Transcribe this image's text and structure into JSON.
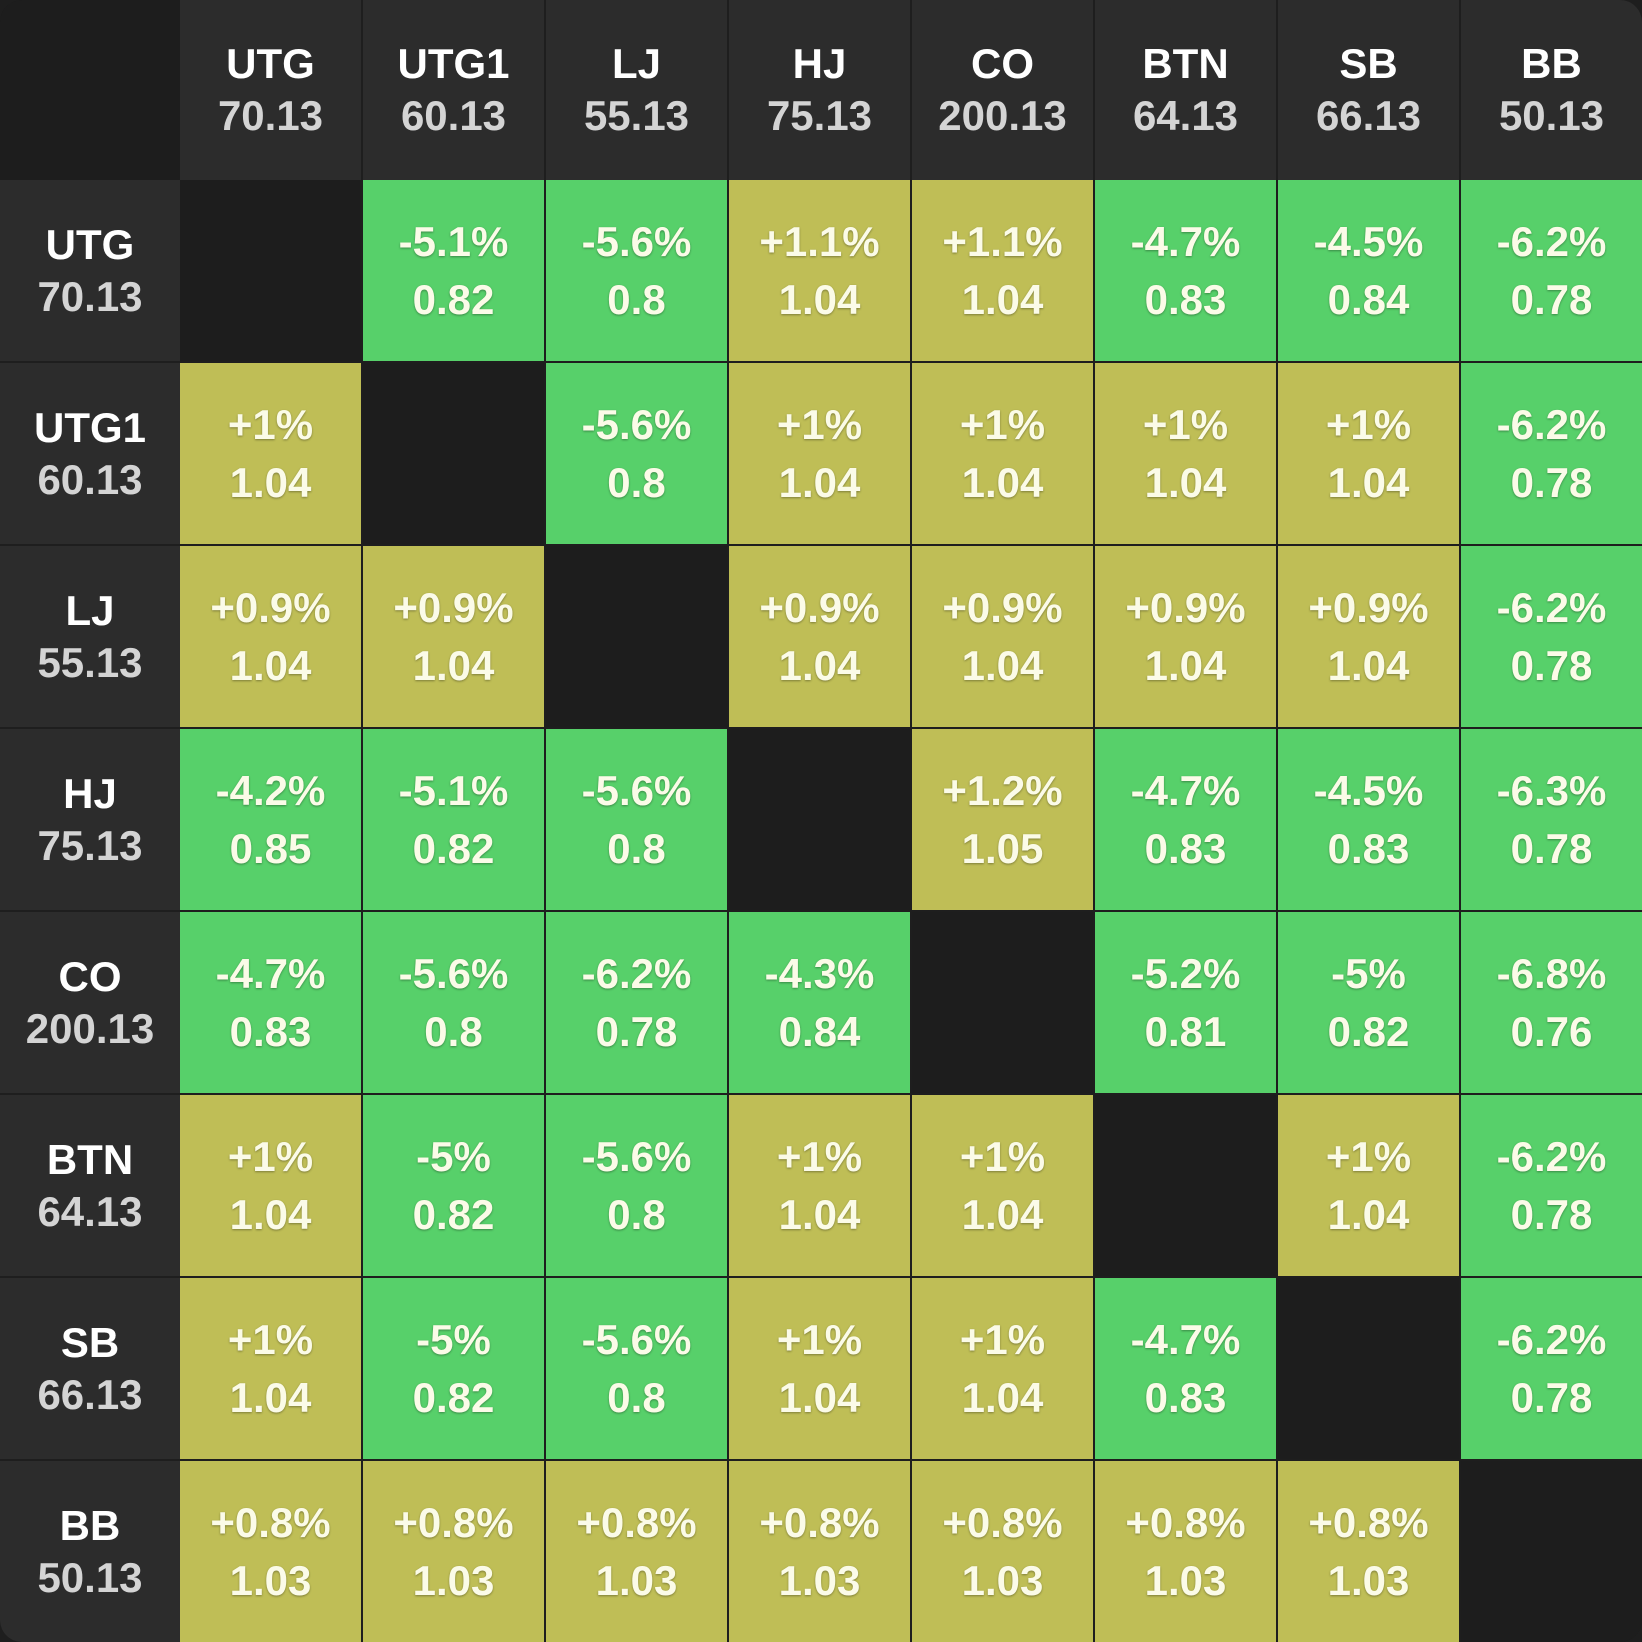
{
  "colors": {
    "green": "#57d06a",
    "olive": "#bfbe56",
    "empty": "#1d1d1d",
    "header": "#2c2c2c"
  },
  "columns": [
    {
      "pos": "UTG",
      "stack": "70.13"
    },
    {
      "pos": "UTG1",
      "stack": "60.13"
    },
    {
      "pos": "LJ",
      "stack": "55.13"
    },
    {
      "pos": "HJ",
      "stack": "75.13"
    },
    {
      "pos": "CO",
      "stack": "200.13"
    },
    {
      "pos": "BTN",
      "stack": "64.13"
    },
    {
      "pos": "SB",
      "stack": "66.13"
    },
    {
      "pos": "BB",
      "stack": "50.13"
    }
  ],
  "rows": [
    {
      "pos": "UTG",
      "stack": "70.13",
      "cells": [
        null,
        {
          "pct": "-5.1%",
          "ratio": "0.82",
          "color": "green"
        },
        {
          "pct": "-5.6%",
          "ratio": "0.8",
          "color": "green"
        },
        {
          "pct": "+1.1%",
          "ratio": "1.04",
          "color": "olive"
        },
        {
          "pct": "+1.1%",
          "ratio": "1.04",
          "color": "olive"
        },
        {
          "pct": "-4.7%",
          "ratio": "0.83",
          "color": "green"
        },
        {
          "pct": "-4.5%",
          "ratio": "0.84",
          "color": "green"
        },
        {
          "pct": "-6.2%",
          "ratio": "0.78",
          "color": "green"
        }
      ]
    },
    {
      "pos": "UTG1",
      "stack": "60.13",
      "cells": [
        {
          "pct": "+1%",
          "ratio": "1.04",
          "color": "olive"
        },
        null,
        {
          "pct": "-5.6%",
          "ratio": "0.8",
          "color": "green"
        },
        {
          "pct": "+1%",
          "ratio": "1.04",
          "color": "olive"
        },
        {
          "pct": "+1%",
          "ratio": "1.04",
          "color": "olive"
        },
        {
          "pct": "+1%",
          "ratio": "1.04",
          "color": "olive"
        },
        {
          "pct": "+1%",
          "ratio": "1.04",
          "color": "olive"
        },
        {
          "pct": "-6.2%",
          "ratio": "0.78",
          "color": "green"
        }
      ]
    },
    {
      "pos": "LJ",
      "stack": "55.13",
      "cells": [
        {
          "pct": "+0.9%",
          "ratio": "1.04",
          "color": "olive"
        },
        {
          "pct": "+0.9%",
          "ratio": "1.04",
          "color": "olive"
        },
        null,
        {
          "pct": "+0.9%",
          "ratio": "1.04",
          "color": "olive"
        },
        {
          "pct": "+0.9%",
          "ratio": "1.04",
          "color": "olive"
        },
        {
          "pct": "+0.9%",
          "ratio": "1.04",
          "color": "olive"
        },
        {
          "pct": "+0.9%",
          "ratio": "1.04",
          "color": "olive"
        },
        {
          "pct": "-6.2%",
          "ratio": "0.78",
          "color": "green"
        }
      ]
    },
    {
      "pos": "HJ",
      "stack": "75.13",
      "cells": [
        {
          "pct": "-4.2%",
          "ratio": "0.85",
          "color": "green"
        },
        {
          "pct": "-5.1%",
          "ratio": "0.82",
          "color": "green"
        },
        {
          "pct": "-5.6%",
          "ratio": "0.8",
          "color": "green"
        },
        null,
        {
          "pct": "+1.2%",
          "ratio": "1.05",
          "color": "olive"
        },
        {
          "pct": "-4.7%",
          "ratio": "0.83",
          "color": "green"
        },
        {
          "pct": "-4.5%",
          "ratio": "0.83",
          "color": "green"
        },
        {
          "pct": "-6.3%",
          "ratio": "0.78",
          "color": "green"
        }
      ]
    },
    {
      "pos": "CO",
      "stack": "200.13",
      "cells": [
        {
          "pct": "-4.7%",
          "ratio": "0.83",
          "color": "green"
        },
        {
          "pct": "-5.6%",
          "ratio": "0.8",
          "color": "green"
        },
        {
          "pct": "-6.2%",
          "ratio": "0.78",
          "color": "green"
        },
        {
          "pct": "-4.3%",
          "ratio": "0.84",
          "color": "green"
        },
        null,
        {
          "pct": "-5.2%",
          "ratio": "0.81",
          "color": "green"
        },
        {
          "pct": "-5%",
          "ratio": "0.82",
          "color": "green"
        },
        {
          "pct": "-6.8%",
          "ratio": "0.76",
          "color": "green"
        }
      ]
    },
    {
      "pos": "BTN",
      "stack": "64.13",
      "cells": [
        {
          "pct": "+1%",
          "ratio": "1.04",
          "color": "olive"
        },
        {
          "pct": "-5%",
          "ratio": "0.82",
          "color": "green"
        },
        {
          "pct": "-5.6%",
          "ratio": "0.8",
          "color": "green"
        },
        {
          "pct": "+1%",
          "ratio": "1.04",
          "color": "olive"
        },
        {
          "pct": "+1%",
          "ratio": "1.04",
          "color": "olive"
        },
        null,
        {
          "pct": "+1%",
          "ratio": "1.04",
          "color": "olive"
        },
        {
          "pct": "-6.2%",
          "ratio": "0.78",
          "color": "green"
        }
      ]
    },
    {
      "pos": "SB",
      "stack": "66.13",
      "cells": [
        {
          "pct": "+1%",
          "ratio": "1.04",
          "color": "olive"
        },
        {
          "pct": "-5%",
          "ratio": "0.82",
          "color": "green"
        },
        {
          "pct": "-5.6%",
          "ratio": "0.8",
          "color": "green"
        },
        {
          "pct": "+1%",
          "ratio": "1.04",
          "color": "olive"
        },
        {
          "pct": "+1%",
          "ratio": "1.04",
          "color": "olive"
        },
        {
          "pct": "-4.7%",
          "ratio": "0.83",
          "color": "green"
        },
        null,
        {
          "pct": "-6.2%",
          "ratio": "0.78",
          "color": "green"
        }
      ]
    },
    {
      "pos": "BB",
      "stack": "50.13",
      "cells": [
        {
          "pct": "+0.8%",
          "ratio": "1.03",
          "color": "olive"
        },
        {
          "pct": "+0.8%",
          "ratio": "1.03",
          "color": "olive"
        },
        {
          "pct": "+0.8%",
          "ratio": "1.03",
          "color": "olive"
        },
        {
          "pct": "+0.8%",
          "ratio": "1.03",
          "color": "olive"
        },
        {
          "pct": "+0.8%",
          "ratio": "1.03",
          "color": "olive"
        },
        {
          "pct": "+0.8%",
          "ratio": "1.03",
          "color": "olive"
        },
        {
          "pct": "+0.8%",
          "ratio": "1.03",
          "color": "olive"
        },
        null
      ]
    }
  ]
}
